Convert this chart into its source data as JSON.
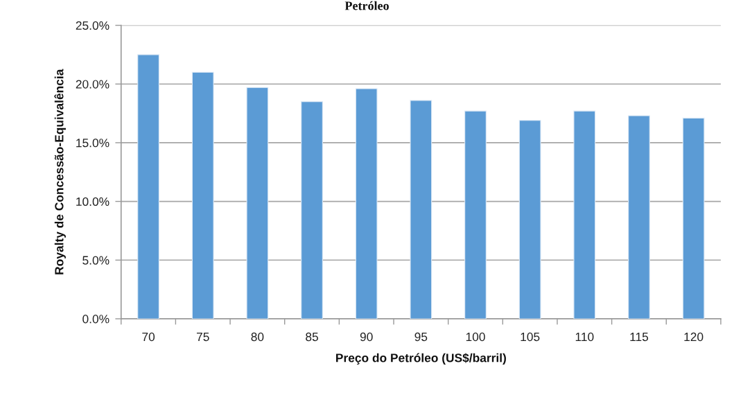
{
  "chart_data": {
    "type": "bar",
    "title": "Petróleo",
    "xlabel": "Preço do Petróleo (US$/barril)",
    "ylabel": "Royalty de Concessão-Equivalência",
    "categories": [
      "70",
      "75",
      "80",
      "85",
      "90",
      "95",
      "100",
      "105",
      "110",
      "115",
      "120"
    ],
    "values": [
      22.5,
      21.0,
      19.7,
      18.5,
      19.6,
      18.6,
      17.7,
      16.9,
      17.7,
      17.3,
      17.1
    ],
    "color": "#5b9bd5",
    "ylim": [
      0,
      25
    ],
    "yticks": [
      {
        "value": 0,
        "label": "0.0%"
      },
      {
        "value": 5,
        "label": "5.0%"
      },
      {
        "value": 10,
        "label": "10.0%"
      },
      {
        "value": 15,
        "label": "15.0%"
      },
      {
        "value": 20,
        "label": "20.0%"
      },
      {
        "value": 25,
        "label": "25.0%"
      }
    ],
    "grid": "y"
  }
}
